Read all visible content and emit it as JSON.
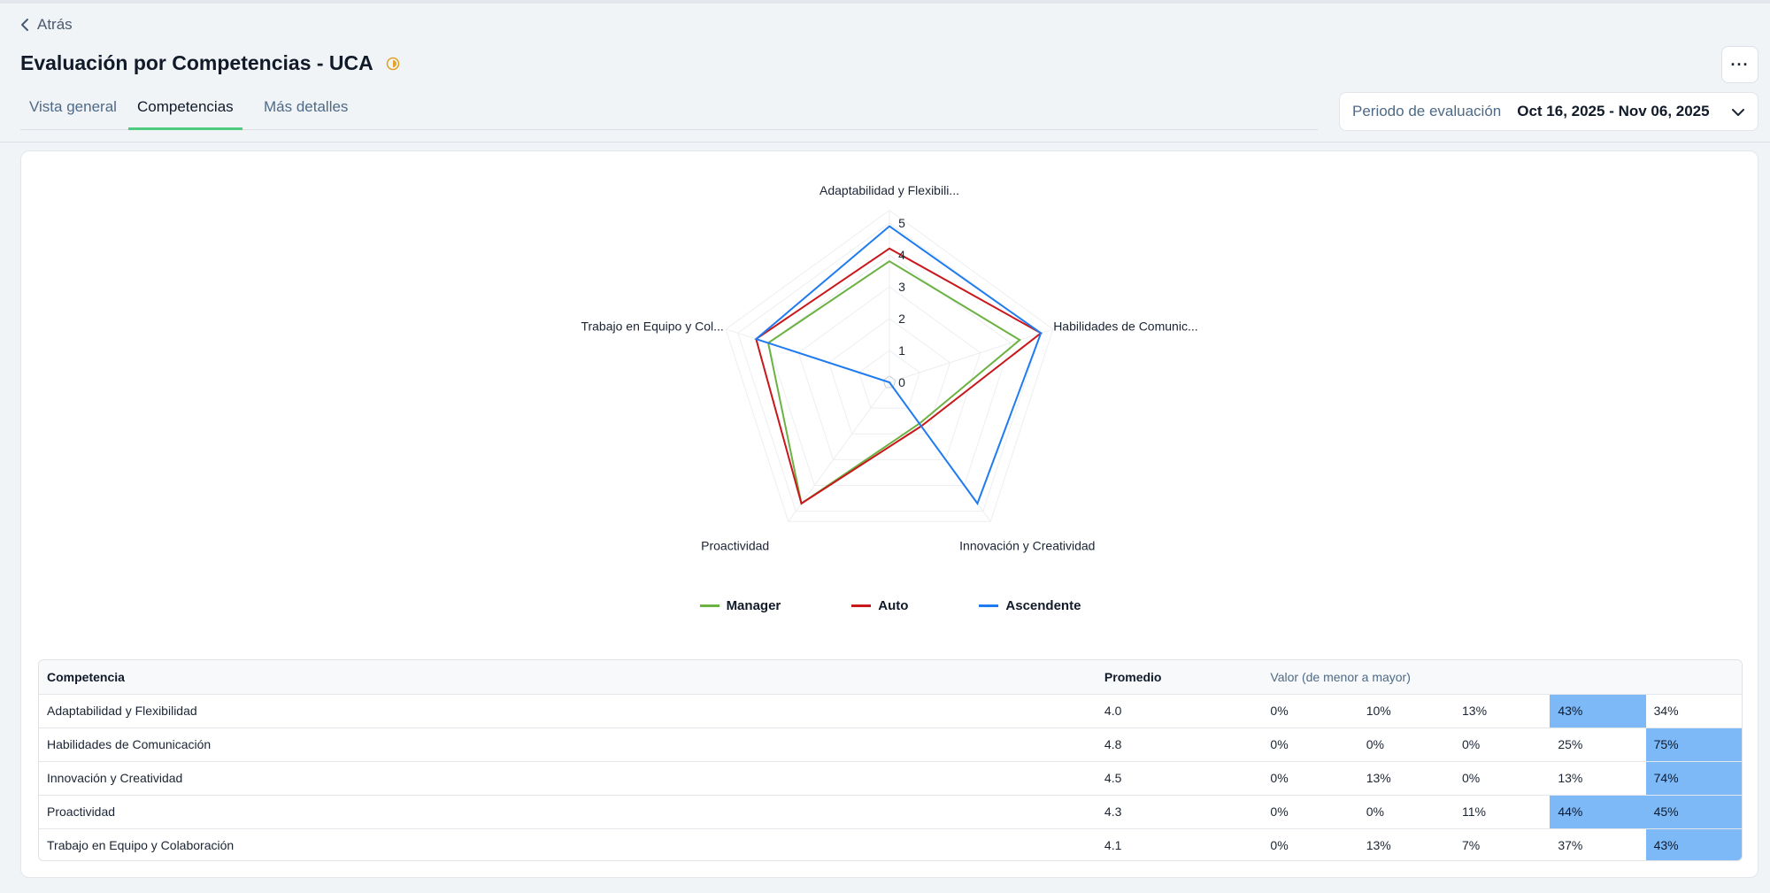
{
  "header": {
    "back_label": "Atrás",
    "title": "Evaluación por Competencias - UCA",
    "more_label": "···"
  },
  "tabs": [
    {
      "label": "Vista general",
      "active": false
    },
    {
      "label": "Competencias",
      "active": true
    },
    {
      "label": "Más detalles",
      "active": false
    }
  ],
  "period": {
    "label": "Periodo de evaluación",
    "value": "Oct 16, 2025 - Nov 06, 2025"
  },
  "chart_data": {
    "type": "radar",
    "axes": [
      "Adaptabilidad y Flexibili...",
      "Habilidades de Comunic...",
      "Innovación y Creatividad",
      "Proactividad",
      "Trabajo en Equipo y Col..."
    ],
    "radial_ticks": [
      "0",
      "1",
      "2",
      "3",
      "4",
      "5"
    ],
    "rlim": [
      0,
      5
    ],
    "series": [
      {
        "name": "Manager",
        "color": "#6cb243",
        "values": [
          3.8,
          4.3,
          1.6,
          4.7,
          4.0
        ]
      },
      {
        "name": "Auto",
        "color": "#c8181b",
        "values": [
          4.2,
          5.0,
          1.7,
          4.7,
          4.4
        ]
      },
      {
        "name": "Ascendente",
        "color": "#1f7bf0",
        "values": [
          4.9,
          5.0,
          4.7,
          0.0,
          4.4
        ]
      }
    ],
    "legend": "bottom"
  },
  "table": {
    "headers": {
      "competencia": "Competencia",
      "promedio": "Promedio",
      "valor": "Valor (de menor a mayor)"
    },
    "highlight_color": "#7db8f7",
    "rows": [
      {
        "name": "Adaptabilidad y Flexibilidad",
        "avg": "4.0",
        "values": [
          "0%",
          "10%",
          "13%",
          "43%",
          "34%"
        ],
        "highlight": 3
      },
      {
        "name": "Habilidades de Comunicación",
        "avg": "4.8",
        "values": [
          "0%",
          "0%",
          "0%",
          "25%",
          "75%"
        ],
        "highlight": 4
      },
      {
        "name": "Innovación y Creatividad",
        "avg": "4.5",
        "values": [
          "0%",
          "13%",
          "0%",
          "13%",
          "74%"
        ],
        "highlight": 4
      },
      {
        "name": "Proactividad",
        "avg": "4.3",
        "values": [
          "0%",
          "0%",
          "11%",
          "44%",
          "45%"
        ],
        "highlight": [
          3,
          4
        ]
      },
      {
        "name": "Trabajo en Equipo y Colaboración",
        "avg": "4.1",
        "values": [
          "0%",
          "13%",
          "7%",
          "37%",
          "43%"
        ],
        "highlight": 4
      }
    ]
  }
}
